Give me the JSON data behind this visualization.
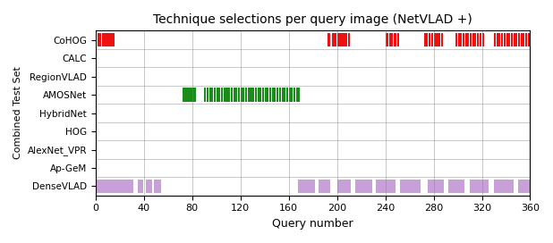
{
  "title": "Technique selections per query image (NetVLAD +)",
  "xlabel": "Query number",
  "ylabel": "Combined Test Set",
  "xlim": [
    0,
    360
  ],
  "xticks": [
    0,
    40,
    80,
    120,
    160,
    200,
    240,
    280,
    320,
    360
  ],
  "techniques": [
    "CoHOG",
    "CALC",
    "RegionVLAD",
    "AMOSNet",
    "HybridNet",
    "HOG",
    "AlexNet_VPR",
    "Ap-GeM",
    "DenseVLAD"
  ],
  "colors": {
    "CoHOG": "#ee1111",
    "AMOSNet": "#1a8c1a",
    "DenseVLAD": "#c8a0d8"
  },
  "cohog_selections": [
    2,
    3,
    5,
    6,
    7,
    8,
    10,
    11,
    13,
    14,
    192,
    193,
    196,
    197,
    198,
    200,
    202,
    203,
    204,
    205,
    206,
    207,
    209,
    240,
    241,
    243,
    245,
    247,
    248,
    250,
    272,
    274,
    276,
    278,
    280,
    282,
    283,
    284,
    286,
    298,
    300,
    302,
    304,
    306,
    308,
    310,
    312,
    314,
    316,
    318,
    320,
    330,
    332,
    334,
    336,
    338,
    340,
    342,
    344,
    346,
    348,
    350,
    352,
    354,
    356,
    358
  ],
  "amosnet_selections": [
    72,
    73,
    74,
    76,
    77,
    79,
    80,
    82,
    90,
    92,
    94,
    96,
    98,
    100,
    102,
    104,
    106,
    108,
    110,
    112,
    114,
    116,
    118,
    120,
    122,
    124,
    126,
    128,
    130,
    132,
    134,
    136,
    138,
    140,
    142,
    144,
    146,
    148,
    150,
    152,
    154,
    156,
    158,
    160,
    162,
    164,
    166,
    168
  ],
  "densevlad_selections": [
    1,
    2,
    3,
    4,
    5,
    6,
    7,
    8,
    9,
    10,
    11,
    12,
    13,
    14,
    15,
    16,
    17,
    18,
    19,
    20,
    22,
    23,
    24,
    25,
    26,
    27,
    28,
    29,
    30,
    35,
    36,
    37,
    38,
    42,
    43,
    44,
    45,
    48,
    49,
    50,
    51,
    52,
    53,
    168,
    169,
    170,
    171,
    172,
    173,
    174,
    175,
    176,
    177,
    178,
    179,
    180,
    185,
    186,
    187,
    188,
    189,
    190,
    191,
    192,
    193,
    200,
    201,
    202,
    203,
    204,
    205,
    206,
    207,
    208,
    209,
    210,
    215,
    216,
    217,
    218,
    219,
    220,
    221,
    222,
    223,
    224,
    225,
    226,
    227,
    228,
    232,
    233,
    234,
    235,
    236,
    237,
    238,
    239,
    240,
    241,
    242,
    243,
    244,
    245,
    246,
    247,
    252,
    253,
    254,
    255,
    256,
    257,
    258,
    259,
    260,
    261,
    262,
    263,
    264,
    265,
    266,
    267,
    268,
    275,
    276,
    277,
    278,
    279,
    280,
    281,
    282,
    283,
    284,
    285,
    286,
    287,
    292,
    293,
    294,
    295,
    296,
    297,
    298,
    299,
    300,
    301,
    302,
    303,
    304,
    310,
    311,
    312,
    313,
    314,
    315,
    316,
    317,
    318,
    319,
    320,
    321,
    322,
    323,
    324,
    330,
    331,
    332,
    333,
    334,
    335,
    336,
    337,
    338,
    339,
    340,
    341,
    342,
    343,
    344,
    345,
    350,
    351,
    352,
    353,
    354,
    355,
    356,
    357,
    358,
    359
  ]
}
